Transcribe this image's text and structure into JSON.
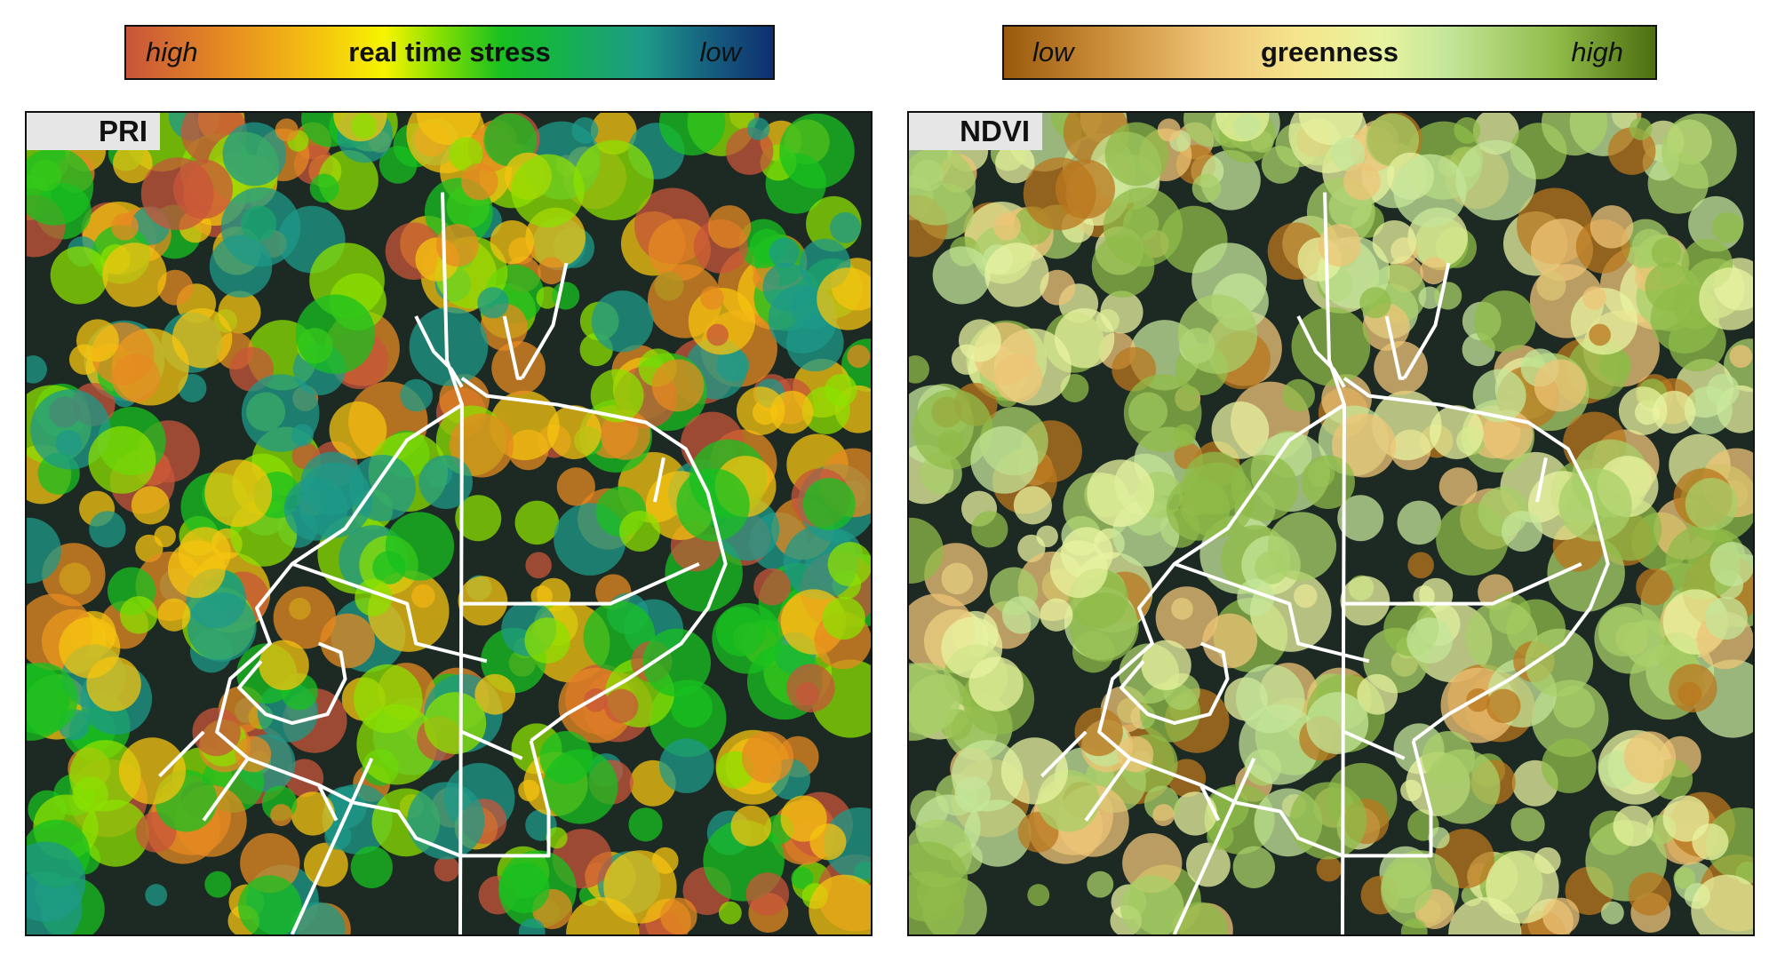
{
  "colorbars": [
    {
      "low_end": "high",
      "title": "real time stress",
      "high_end": "low",
      "colors": [
        "#c8553a",
        "#e58a22",
        "#f6f500",
        "#18c020",
        "#1d9a88",
        "#0e2f70"
      ]
    },
    {
      "low_end": "low",
      "title": "greenness",
      "high_end": "high",
      "colors": [
        "#9a5a0e",
        "#eec477",
        "#e8f3a0",
        "#8fbb48",
        "#4d6e10"
      ]
    }
  ],
  "panels": [
    {
      "label": "PRI",
      "palette": [
        "#c8553a",
        "#e58a22",
        "#f5c410",
        "#8be000",
        "#18c020",
        "#1d9a88"
      ]
    },
    {
      "label": "NDVI",
      "palette": [
        "#b9771e",
        "#eec477",
        "#e8f3a0",
        "#c4e69a",
        "#a8cf68",
        "#8fbb48"
      ]
    }
  ]
}
